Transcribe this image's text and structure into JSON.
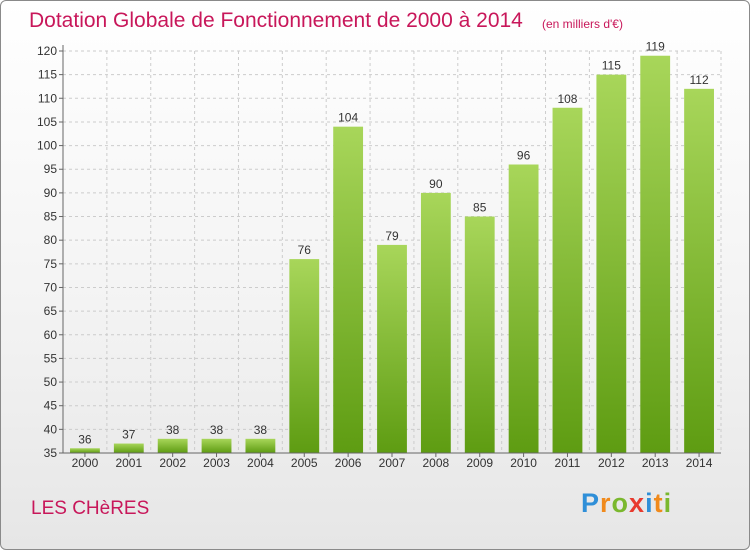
{
  "title": "Dotation Globale de Fonctionnement de 2000 à 2014",
  "subtitle": "(en milliers d'€)",
  "commune": "LES CHèRES",
  "logo": {
    "letters": [
      "P",
      "r",
      "o",
      "x",
      "i",
      "t",
      "i"
    ],
    "colors": [
      "#2f8fd8",
      "#f08a1c",
      "#7ab82e",
      "#e83a2e",
      "#2f8fd8",
      "#f08a1c",
      "#7ab82e"
    ]
  },
  "colors": {
    "bar_top": "#a8d65a",
    "bar_bottom": "#5e9c12",
    "accent": "#c8175a",
    "grid": "#cccccc"
  },
  "chart_data": {
    "type": "bar",
    "categories": [
      "2000",
      "2001",
      "2002",
      "2003",
      "2004",
      "2005",
      "2006",
      "2007",
      "2008",
      "2009",
      "2010",
      "2011",
      "2012",
      "2013",
      "2014"
    ],
    "values": [
      36,
      37,
      38,
      38,
      38,
      76,
      104,
      79,
      90,
      85,
      96,
      108,
      115,
      119,
      112
    ],
    "title": "Dotation Globale de Fonctionnement de 2000 à 2014",
    "ylim": [
      35,
      120
    ],
    "yticks": [
      35,
      40,
      45,
      50,
      55,
      60,
      65,
      70,
      75,
      80,
      85,
      90,
      95,
      100,
      105,
      110,
      115,
      120
    ],
    "grid": true,
    "legend": "none"
  }
}
